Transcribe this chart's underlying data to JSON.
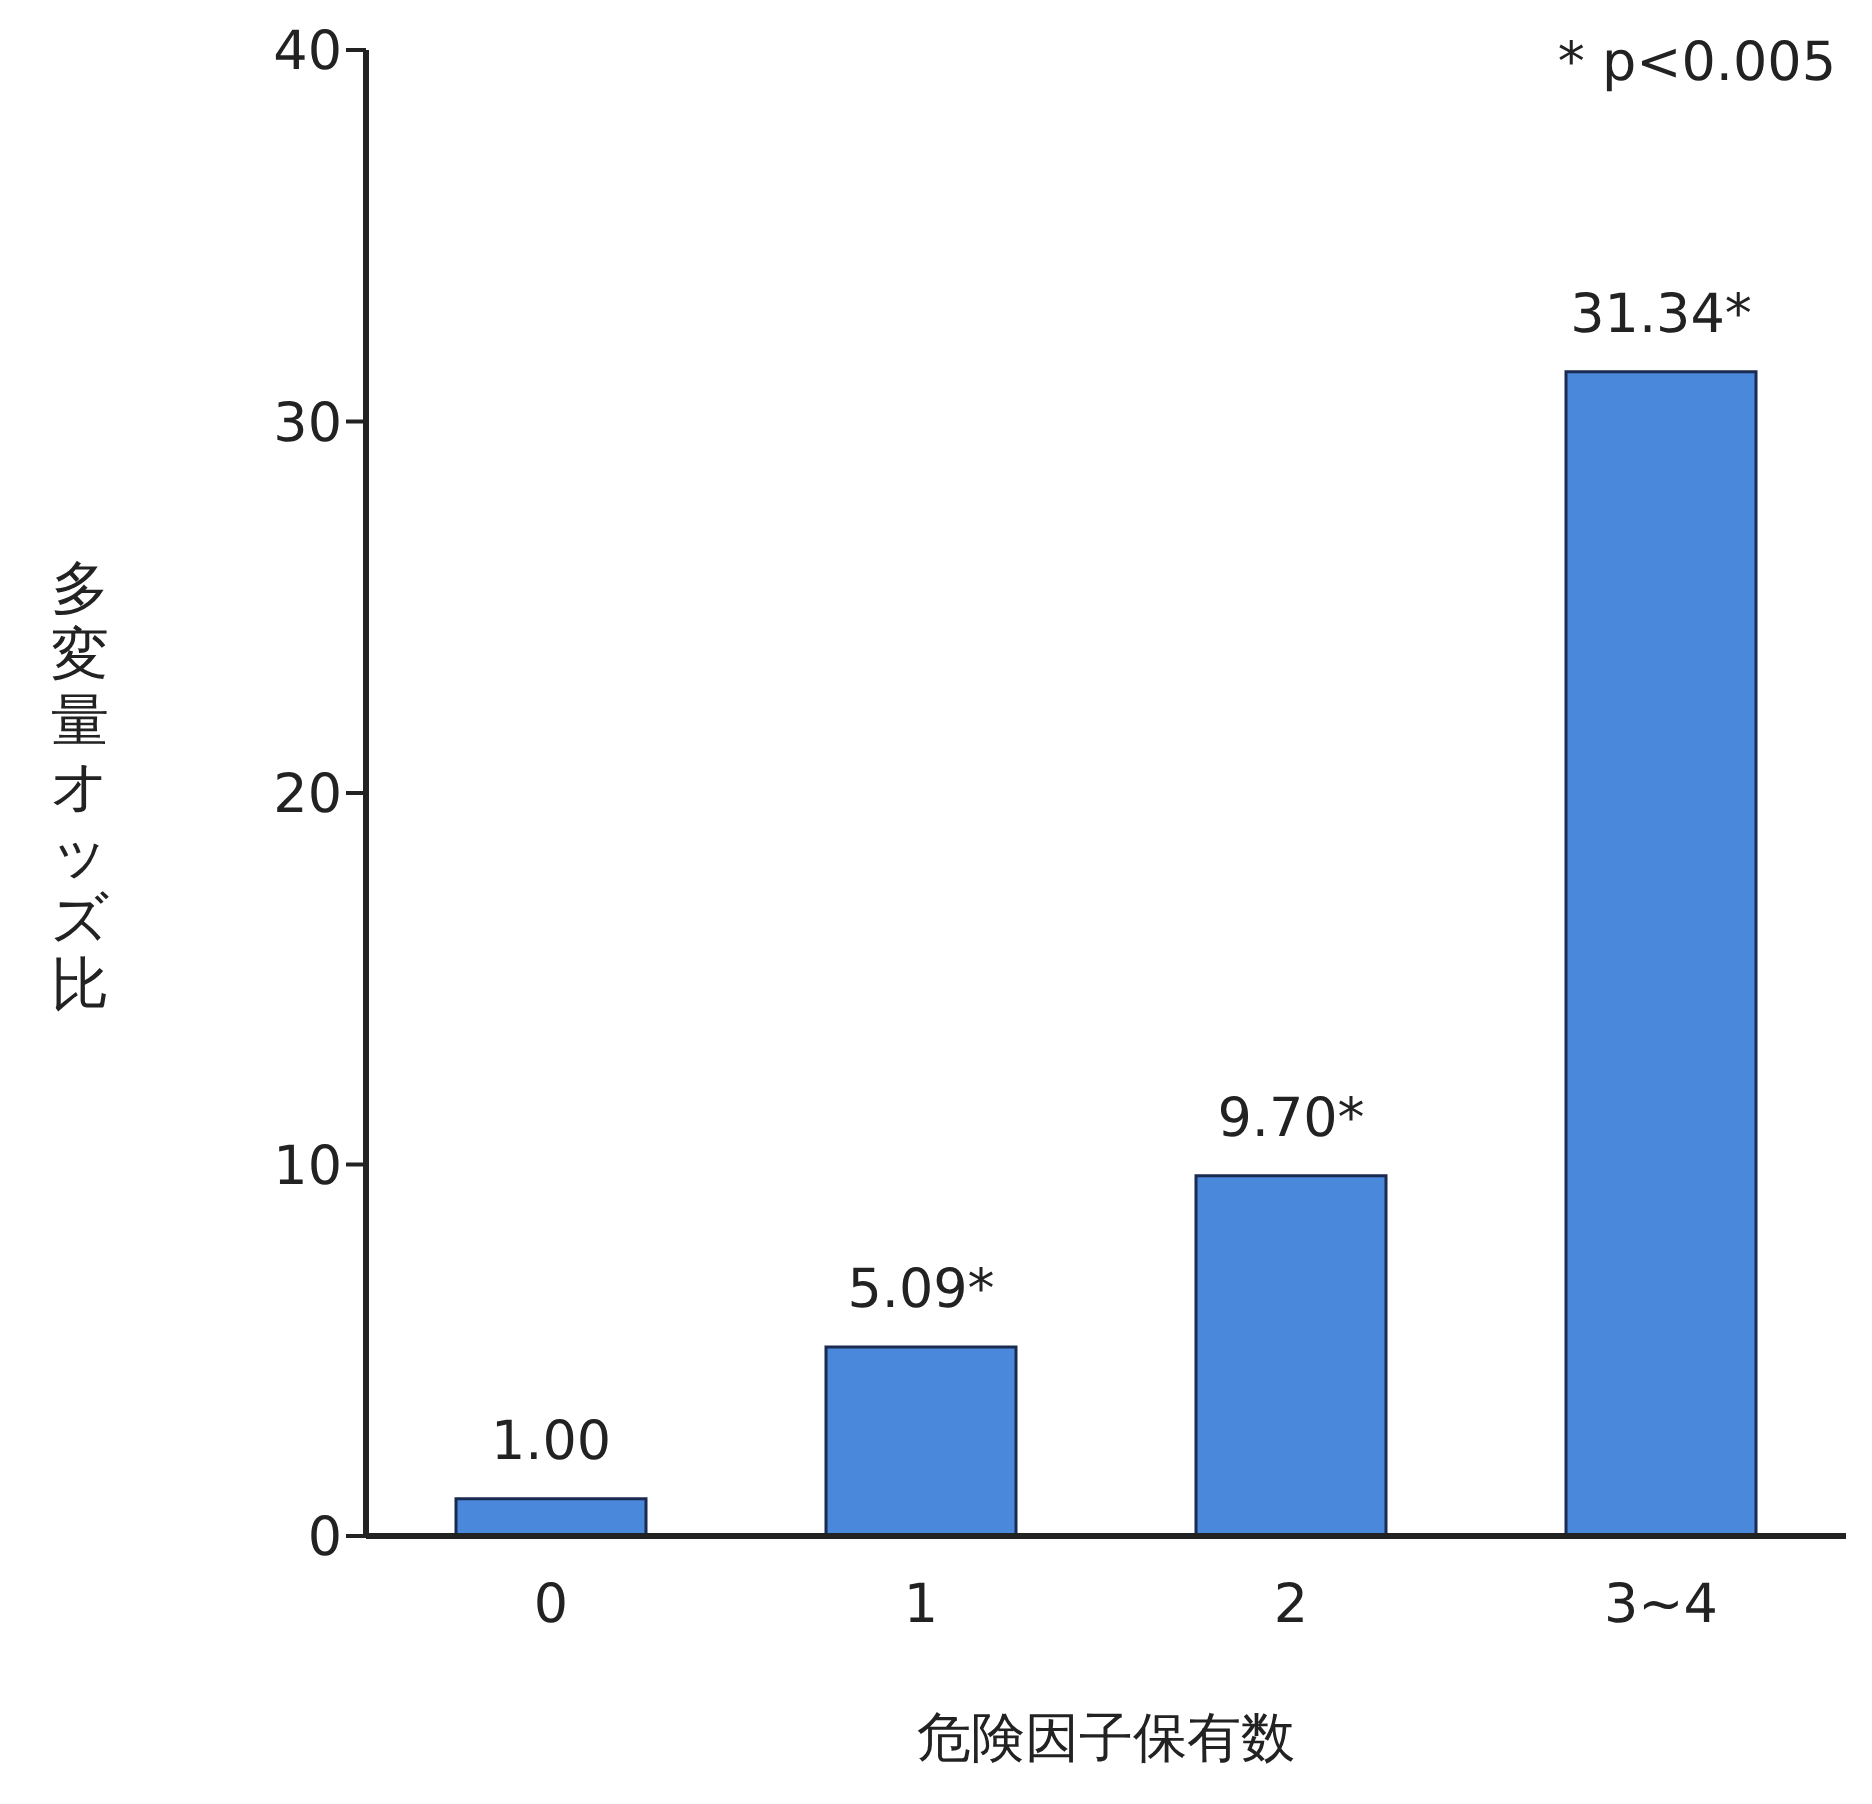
{
  "chart_data": {
    "type": "bar",
    "xlabel": "危険因子保有数",
    "ylabel": "多変量オッズ比",
    "categories": [
      "0",
      "1",
      "2",
      "3~4"
    ],
    "values": [
      1.0,
      5.09,
      9.7,
      31.34
    ],
    "value_labels": [
      "1.00",
      "5.09*",
      "9.70*",
      "31.34*"
    ],
    "color": "#4a88dc",
    "ylim": [
      0,
      40
    ],
    "yticks": [
      0,
      10,
      20,
      30,
      40
    ],
    "grid": false,
    "legend": false,
    "annotations": [
      "* p<0.005"
    ]
  }
}
